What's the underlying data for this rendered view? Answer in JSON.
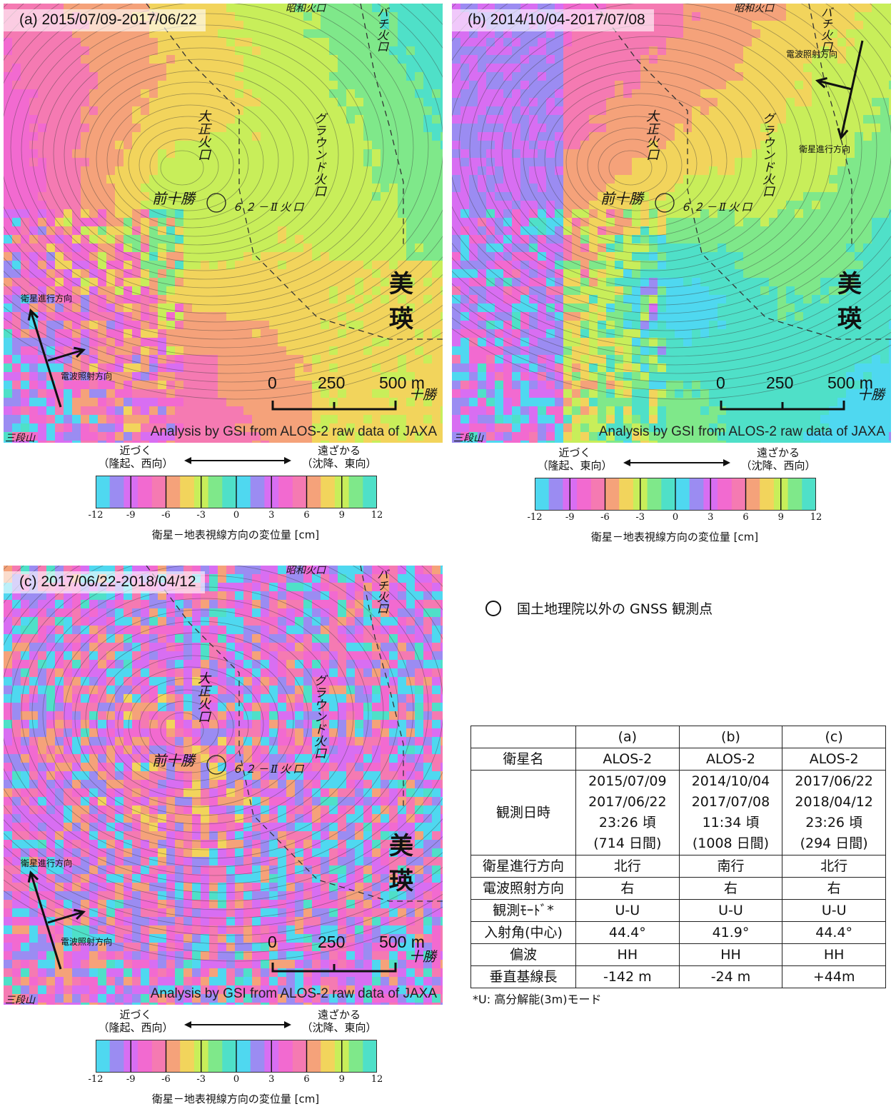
{
  "panels": [
    {
      "label": "(a) 2015/07/09-2017/06/22",
      "credit": "Analysis by GSI from ALOS-2 raw data of JAXA",
      "flight_dir_label": "衛星進行方向",
      "radar_dir_label": "電波照射方向",
      "variant": "a"
    },
    {
      "label": "(b) 2014/10/04-2017/07/08",
      "credit": "Analysis by GSI from ALOS-2 raw data of JAXA",
      "flight_dir_label": "衛星進行方向",
      "radar_dir_label": "電波照射方向",
      "variant": "b"
    },
    {
      "label": "(c) 2017/06/22-2018/04/12",
      "credit": "Analysis by GSI from ALOS-2 raw data of JAXA",
      "flight_dir_label": "衛星進行方向",
      "radar_dir_label": "電波照射方向",
      "variant": "c"
    }
  ],
  "map_labels": {
    "maejukati": "前十勝",
    "crater62": "６２－Ⅱ火口",
    "taisho": "大正火口",
    "ground": "グラウンド火口",
    "bachi": "バチ火口",
    "showa": "昭和火口",
    "biei": "美瑛",
    "tokachi": "十勝",
    "sandan": "三段山"
  },
  "scale_bar": {
    "labels": [
      "0",
      "250",
      "500 m"
    ]
  },
  "colorbars": [
    {
      "near": "近づく",
      "near_sub": "（隆起、西向）",
      "far": "遠ざかる",
      "far_sub": "（沈降、東向）",
      "ticks": [
        "-12",
        "-9",
        "-6",
        "-3",
        "0",
        "3",
        "6",
        "9",
        "12"
      ],
      "caption": "衛星－地表視線方向の変位量 [cm]"
    },
    {
      "near": "近づく",
      "near_sub": "（隆起、東向）",
      "far": "遠ざかる",
      "far_sub": "（沈降、西向）",
      "ticks": [
        "-12",
        "-9",
        "-6",
        "-3",
        "0",
        "3",
        "6",
        "9",
        "12"
      ],
      "caption": "衛星－地表視線方向の変位量 [cm]"
    },
    {
      "near": "近づく",
      "near_sub": "（隆起、西向）",
      "far": "遠ざかる",
      "far_sub": "（沈降、東向）",
      "ticks": [
        "-12",
        "-9",
        "-6",
        "-3",
        "0",
        "3",
        "6",
        "9",
        "12"
      ],
      "caption": "衛星－地表視線方向の変位量 [cm]"
    }
  ],
  "legend": {
    "gnss": "国土地理院以外の GNSS 観測点"
  },
  "table": {
    "columns": [
      "",
      "(a)",
      "(b)",
      "(c)"
    ],
    "rows": [
      {
        "label": "衛星名",
        "values": [
          "ALOS-2",
          "ALOS-2",
          "ALOS-2"
        ]
      },
      {
        "label": "観測日時",
        "values": [
          [
            "2015/07/09",
            "2017/06/22",
            "23:26 頃",
            "(714 日間)"
          ],
          [
            "2014/10/04",
            "2017/07/08",
            "11:34 頃",
            "(1008 日間)"
          ],
          [
            "2017/06/22",
            "2018/04/12",
            "23:26 頃",
            "(294 日間)"
          ]
        ]
      },
      {
        "label": "衛星進行方向",
        "values": [
          "北行",
          "南行",
          "北行"
        ]
      },
      {
        "label": "電波照射方向",
        "values": [
          "右",
          "右",
          "右"
        ]
      },
      {
        "label": "観測ﾓｰﾄﾞ*",
        "values": [
          "U-U",
          "U-U",
          "U-U"
        ]
      },
      {
        "label": "入射角(中心)",
        "values": [
          "44.4°",
          "41.9°",
          "44.4°"
        ]
      },
      {
        "label": "偏波",
        "values": [
          "HH",
          "HH",
          "HH"
        ]
      },
      {
        "label": "垂直基線長",
        "values": [
          "-142 m",
          "-24 m",
          "+44m"
        ]
      }
    ],
    "footnote": "*U: 高分解能(3m)モード"
  }
}
